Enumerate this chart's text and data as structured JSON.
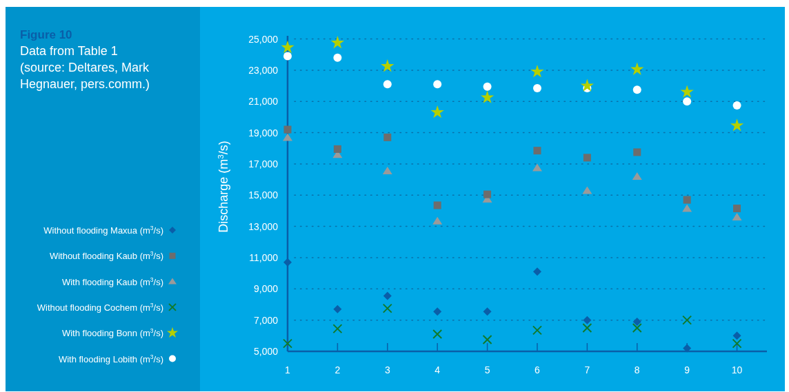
{
  "chart_data": {
    "type": "scatter",
    "title": "Figure 10",
    "subtitle": "Data from Table 1 (source: Deltares, Mark Hegnauer, pers.comm.)",
    "ylabel": "Discharge (m$^{3}$/s)",
    "x": [
      1,
      2,
      3,
      4,
      5,
      6,
      7,
      8,
      9,
      10
    ],
    "xlim": [
      1,
      10.6
    ],
    "xticks": [
      1,
      2,
      3,
      4,
      5,
      6,
      7,
      8,
      9,
      10
    ],
    "ylim": [
      5000,
      25200
    ],
    "yticks": [
      {
        "value": 5000,
        "label": "5,000"
      },
      {
        "value": 7000,
        "label": "7,000"
      },
      {
        "value": 9000,
        "label": "9,000"
      },
      {
        "value": 11000,
        "label": "11,000"
      },
      {
        "value": 13000,
        "label": "13,000"
      },
      {
        "value": 15000,
        "label": "15,000"
      },
      {
        "value": 17000,
        "label": "17,000"
      },
      {
        "value": 19000,
        "label": "19,000"
      },
      {
        "value": 21000,
        "label": "21,000"
      },
      {
        "value": 23000,
        "label": "23,000"
      },
      {
        "value": 25000,
        "label": "25,000"
      }
    ],
    "grid": "y",
    "legend": "left",
    "series": [
      {
        "name": "Without flooding Maxua (m$^{3}$/s)",
        "color": "#0a5ea8",
        "marker": "diamond",
        "values": [
          10700,
          7700,
          8550,
          7550,
          7550,
          10100,
          7000,
          6900,
          5200,
          6000
        ]
      },
      {
        "name": "Without flooding Kaub (m$^{3}$/s)",
        "color": "#6d6d6d",
        "marker": "square",
        "values": [
          19200,
          17950,
          18700,
          14350,
          15050,
          17850,
          17400,
          17750,
          14700,
          14150
        ]
      },
      {
        "name": "With flooding Kaub (m$^{3}$/s)",
        "color": "#9a9a9a",
        "marker": "triangle",
        "values": [
          18700,
          17600,
          16550,
          13350,
          14750,
          16750,
          15300,
          16200,
          14150,
          13600
        ]
      },
      {
        "name": "Without flooding Cochem (m$^{3}$/s)",
        "color": "#117a2b",
        "marker": "cross",
        "values": [
          5500,
          6450,
          7750,
          6100,
          5750,
          6350,
          6500,
          6500,
          7000,
          5500
        ]
      },
      {
        "name": "With flooding Bonn (m$^{3}$/s)",
        "color": "#b5d000",
        "marker": "star",
        "values": [
          24450,
          24750,
          23250,
          20300,
          21250,
          22900,
          22000,
          23050,
          21600,
          19450
        ]
      },
      {
        "name": "With flooding Lobith (m$^{3}$/s)",
        "color": "#ffffff",
        "marker": "circle",
        "values": [
          23900,
          23800,
          22100,
          22100,
          21950,
          21850,
          21850,
          21750,
          21000,
          20750
        ]
      }
    ]
  }
}
